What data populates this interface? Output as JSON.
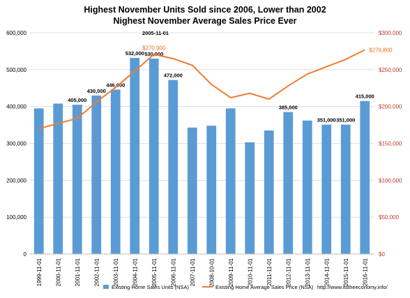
{
  "chart_data": {
    "type": "bar+line",
    "title_line1": "Highest November Units Sold since 2006, Lower than 2002",
    "title_line2": "Nighest November Average Sales Price Ever",
    "categories": [
      "1999-11-01",
      "2000-11-01",
      "2001-11-01",
      "2002-11-01",
      "2003-11-01",
      "2004-11-01",
      "2005-11-01",
      "2006-11-01",
      "2007-11-01",
      "2008-10-01",
      "2009-11-01",
      "2010-11-01",
      "2011-11-01",
      "2012-11-01",
      "2013-11-01",
      "2014-11-01",
      "2015-11-01",
      "2016-11-01"
    ],
    "bar_series": {
      "name": "Existing Home Sales Units (NSA)",
      "color": "#5b9bd5",
      "values": [
        395000,
        408000,
        405000,
        430000,
        446000,
        532000,
        530000,
        472000,
        343000,
        348000,
        395000,
        303000,
        335000,
        385000,
        362000,
        351000,
        351000,
        415000
      ],
      "labels": [
        "",
        "",
        "405,000",
        "430,000",
        "446,000",
        "532,000",
        "530,000",
        "472,000",
        "",
        "",
        "",
        "",
        "",
        "385,000",
        "",
        "351,000",
        "351,000",
        "415,000"
      ]
    },
    "line_series": {
      "name": "Existing Home Average Sales Price (NSA)",
      "color": "#ed7d31",
      "values": [
        170000,
        177000,
        184000,
        206000,
        226000,
        248000,
        270900,
        265000,
        256000,
        230000,
        212000,
        218000,
        210000,
        228000,
        244000,
        254000,
        264000,
        276800
      ],
      "labels": [
        "",
        "",
        "",
        "",
        "",
        "",
        "$270,900",
        "",
        "",
        "",
        "",
        "",
        "",
        "",
        "",
        "",
        "",
        "$276,800"
      ]
    },
    "annotation": "2005-11-01",
    "left_axis": {
      "ylim": [
        0,
        600000
      ],
      "ticks": [
        "0",
        "100,000",
        "200,000",
        "300,000",
        "400,000",
        "500,000",
        "600,000"
      ]
    },
    "right_axis": {
      "ylim": [
        0,
        300000
      ],
      "color": "#c0392b",
      "ticks": [
        "$0",
        "$50,000",
        "$100,000",
        "$150,000",
        "$200,000",
        "$250,000",
        "$300,000"
      ]
    },
    "grid": true,
    "legend_position": "bottom",
    "source": "http://www.itstheeconomy.info/"
  }
}
